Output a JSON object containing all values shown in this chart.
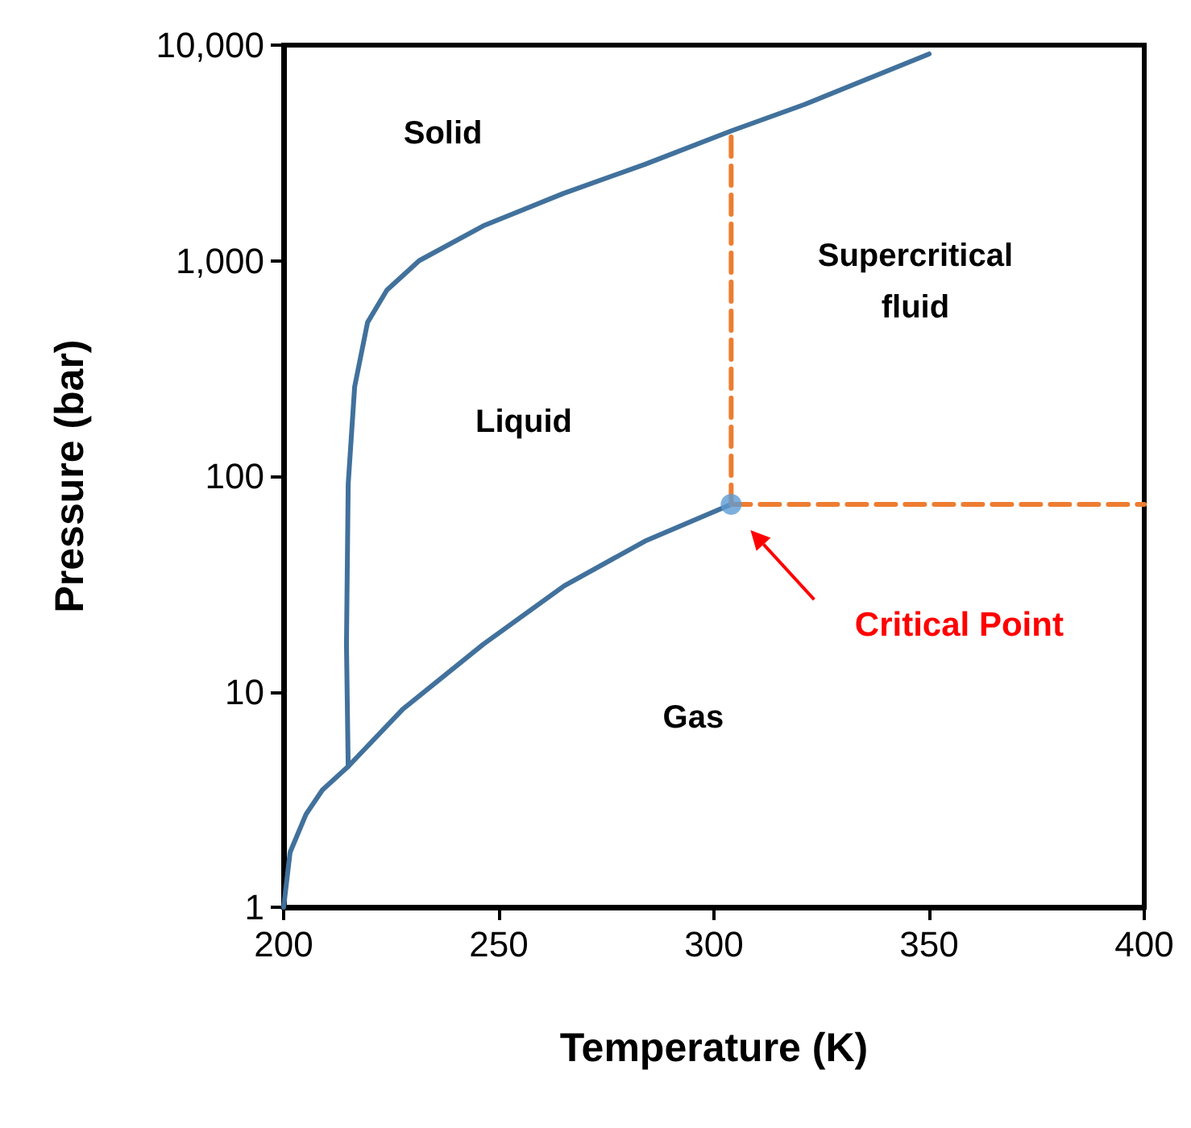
{
  "chart_data": {
    "type": "line",
    "xlabel": "Temperature (K)",
    "ylabel": "Pressure (bar)",
    "log": "y",
    "marker": "none",
    "line_style": "solid",
    "xlim": [
      200,
      400
    ],
    "xticks": [
      200,
      250,
      300,
      350,
      400
    ],
    "ylim": [
      1,
      10000
    ],
    "yticks": [
      1,
      10,
      100,
      {
        "value": 1000,
        "label": "1,000"
      },
      {
        "value": 10000,
        "label": "10,000"
      }
    ],
    "series": [
      {
        "color": "#41719c",
        "x": [
          200,
          201.5,
          205.2,
          209,
          215,
          227.7,
          246.4,
          265.2,
          284,
          304
        ],
        "values": [
          1,
          1.8,
          2.7,
          3.5,
          4.5,
          8.3,
          16.6,
          31,
          50,
          74
        ]
      },
      {
        "color": "#41719c",
        "x": [
          215,
          214.6,
          215,
          216.5,
          219.5,
          224,
          231.5,
          246.4,
          265,
          284,
          304,
          321,
          350
        ],
        "values": [
          4.5,
          16.6,
          92,
          260,
          517,
          730,
          1000,
          1450,
          2050,
          2800,
          4000,
          5300,
          9100
        ]
      },
      {
        "color": "#ed7d31",
        "line_style": "dashed",
        "x": [
          304,
          304
        ],
        "values": [
          74,
          4000
        ]
      },
      {
        "color": "#ed7d31",
        "line_style": "dashed",
        "x": [
          304,
          400
        ],
        "values": [
          74,
          74
        ]
      },
      {
        "type": "scatter",
        "marker": "circle",
        "color": "#5b9bd5",
        "x": [
          304
        ],
        "values": [
          74
        ]
      }
    ],
    "annotations": [
      "Solid",
      "Liquid",
      "Supercritical\nfluid",
      "Gas",
      "Critical Point"
    ]
  }
}
